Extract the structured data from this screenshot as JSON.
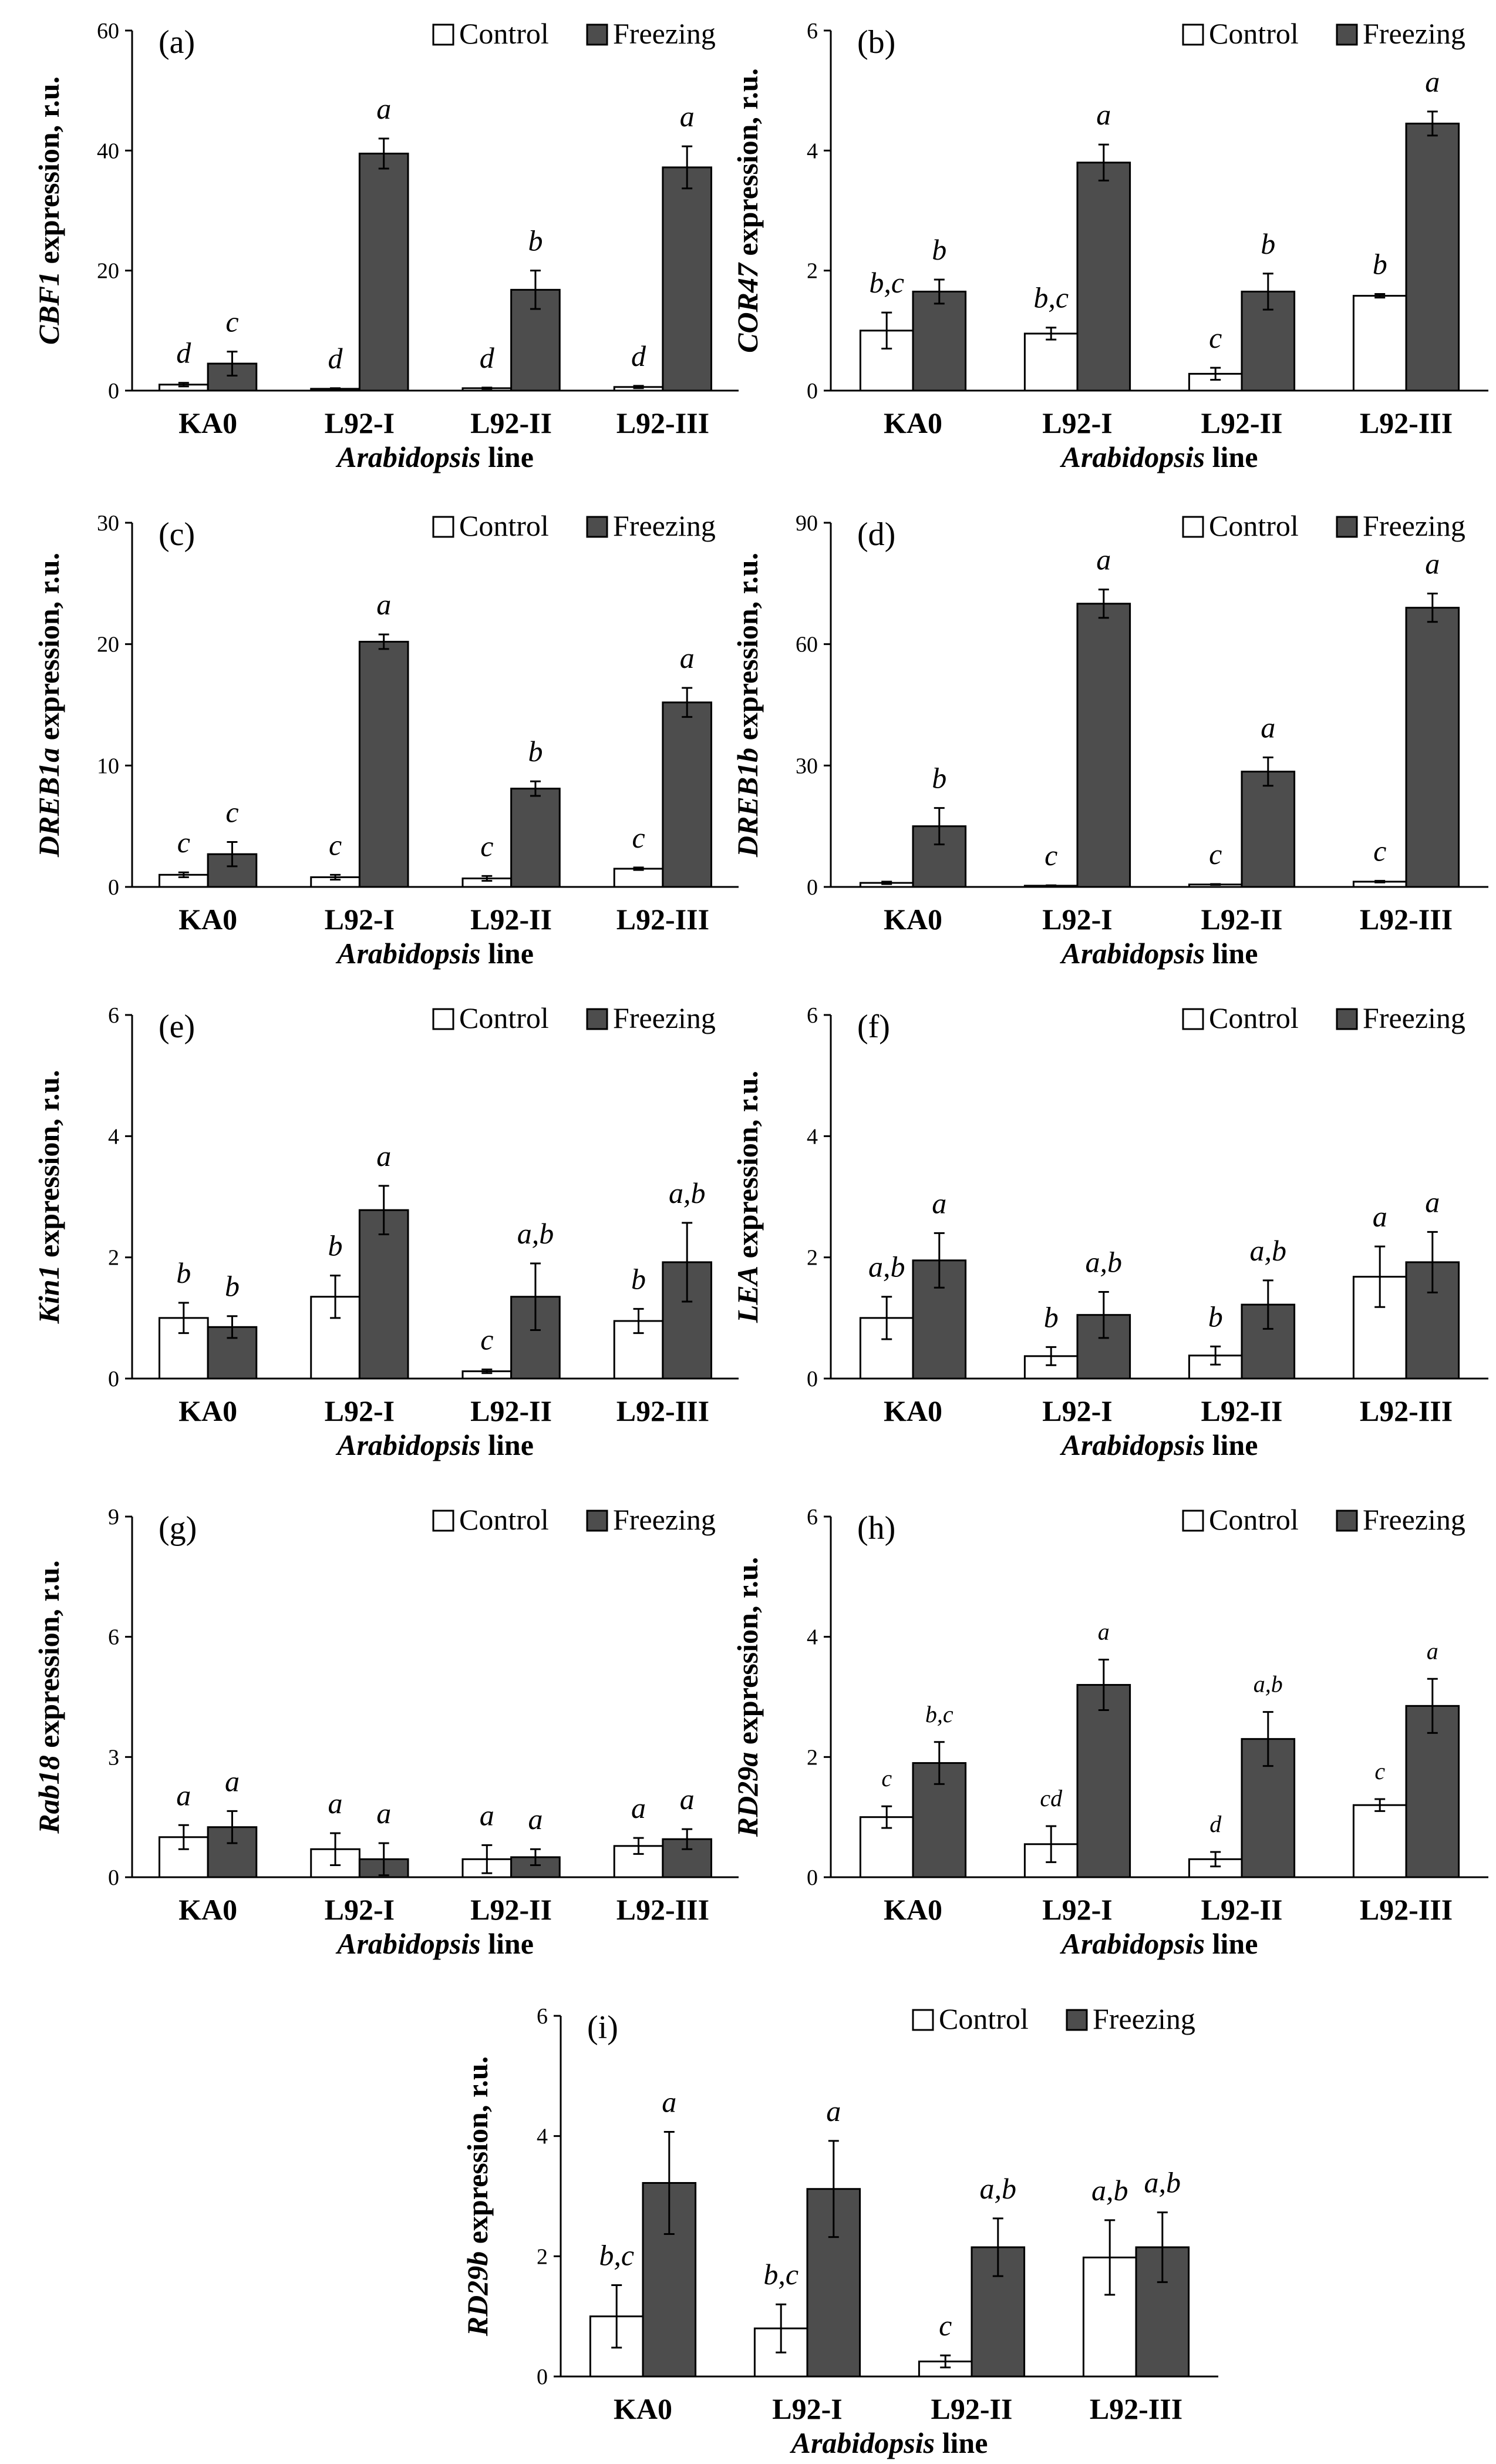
{
  "figure": {
    "legend": {
      "control": "Control",
      "freezing": "Freezing"
    },
    "colors": {
      "control_fill": "#ffffff",
      "freezing_fill": "#4d4d4d",
      "axis": "#000000"
    }
  },
  "chart_data": [
    {
      "type": "bar",
      "panel": "(a)",
      "ylabel_gene": "CBF1",
      "ylabel_suffix": " expression, r.u.",
      "xlabel_gene": "Arabidopsis",
      "xlabel_suffix": " line",
      "categories": [
        "KA0",
        "L92-I",
        "L92-II",
        "L92-III"
      ],
      "ylim": [
        0,
        60
      ],
      "yticks": [
        0,
        20,
        40,
        60
      ],
      "series": [
        {
          "name": "Control",
          "values": [
            1.0,
            0.3,
            0.4,
            0.6
          ],
          "errors": [
            0.3,
            0.1,
            0.1,
            0.2
          ],
          "labels": [
            "d",
            "d",
            "d",
            "d"
          ]
        },
        {
          "name": "Freezing",
          "values": [
            4.5,
            39.5,
            16.8,
            37.2
          ],
          "errors": [
            2.0,
            2.5,
            3.2,
            3.5
          ],
          "labels": [
            "c",
            "a",
            "b",
            "a"
          ]
        }
      ]
    },
    {
      "type": "bar",
      "panel": "(b)",
      "ylabel_gene": "COR47",
      "ylabel_suffix": " expression, r.u.",
      "xlabel_gene": "Arabidopsis",
      "xlabel_suffix": " line",
      "categories": [
        "KA0",
        "L92-I",
        "L92-II",
        "L92-III"
      ],
      "ylim": [
        0,
        6
      ],
      "yticks": [
        0,
        2,
        4,
        6
      ],
      "series": [
        {
          "name": "Control",
          "values": [
            1.0,
            0.95,
            0.28,
            1.58
          ],
          "errors": [
            0.3,
            0.1,
            0.1,
            0.03
          ],
          "labels": [
            "b,c",
            "b,c",
            "c",
            "b"
          ]
        },
        {
          "name": "Freezing",
          "values": [
            1.65,
            3.8,
            1.65,
            4.45
          ],
          "errors": [
            0.2,
            0.3,
            0.3,
            0.2
          ],
          "labels": [
            "b",
            "a",
            "b",
            "a"
          ]
        }
      ]
    },
    {
      "type": "bar",
      "panel": "(c)",
      "ylabel_gene": "DREB1a",
      "ylabel_suffix": " expression, r.u.",
      "xlabel_gene": "Arabidopsis",
      "xlabel_suffix": " line",
      "categories": [
        "KA0",
        "L92-I",
        "L92-II",
        "L92-III"
      ],
      "ylim": [
        0,
        30
      ],
      "yticks": [
        0,
        10,
        20,
        30
      ],
      "series": [
        {
          "name": "Control",
          "values": [
            1.0,
            0.8,
            0.7,
            1.5
          ],
          "errors": [
            0.2,
            0.2,
            0.2,
            0.1
          ],
          "labels": [
            "c",
            "c",
            "c",
            "c"
          ]
        },
        {
          "name": "Freezing",
          "values": [
            2.7,
            20.2,
            8.1,
            15.2
          ],
          "errors": [
            1.0,
            0.6,
            0.6,
            1.2
          ],
          "labels": [
            "c",
            "a",
            "b",
            "a"
          ]
        }
      ]
    },
    {
      "type": "bar",
      "panel": "(d)",
      "ylabel_gene": "DREB1b",
      "ylabel_suffix": " expression, r.u.",
      "xlabel_gene": "Arabidopsis",
      "xlabel_suffix": " line",
      "categories": [
        "KA0",
        "L92-I",
        "L92-II",
        "L92-III"
      ],
      "ylim": [
        0,
        90
      ],
      "yticks": [
        0,
        30,
        60,
        90
      ],
      "series": [
        {
          "name": "Control",
          "values": [
            1.0,
            0.3,
            0.6,
            1.3
          ],
          "errors": [
            0.3,
            0.1,
            0.1,
            0.2
          ],
          "labels": [
            "",
            "c",
            "c",
            "c"
          ]
        },
        {
          "name": "Freezing",
          "values": [
            15.0,
            70.0,
            28.5,
            69.0
          ],
          "errors": [
            4.5,
            3.5,
            3.5,
            3.5
          ],
          "labels": [
            "b",
            "a",
            "a",
            "a"
          ]
        }
      ]
    },
    {
      "type": "bar",
      "panel": "(e)",
      "ylabel_gene": "Kin1",
      "ylabel_suffix": " expression, r.u.",
      "xlabel_gene": "Arabidopsis",
      "xlabel_suffix": " line",
      "categories": [
        "KA0",
        "L92-I",
        "L92-II",
        "L92-III"
      ],
      "ylim": [
        0,
        6
      ],
      "yticks": [
        0,
        2,
        4,
        6
      ],
      "series": [
        {
          "name": "Control",
          "values": [
            1.0,
            1.35,
            0.12,
            0.95
          ],
          "errors": [
            0.25,
            0.35,
            0.03,
            0.2
          ],
          "labels": [
            "b",
            "b",
            "c",
            "b"
          ]
        },
        {
          "name": "Freezing",
          "values": [
            0.85,
            2.78,
            1.35,
            1.92
          ],
          "errors": [
            0.18,
            0.4,
            0.55,
            0.65
          ],
          "labels": [
            "b",
            "a",
            "a,b",
            "a,b"
          ]
        }
      ]
    },
    {
      "type": "bar",
      "panel": "(f)",
      "ylabel_gene": "LEA",
      "ylabel_suffix": " expression, r.u.",
      "xlabel_gene": "Arabidopsis",
      "xlabel_suffix": " line",
      "categories": [
        "KA0",
        "L92-I",
        "L92-II",
        "L92-III"
      ],
      "ylim": [
        0,
        6
      ],
      "yticks": [
        0,
        2,
        4,
        6
      ],
      "series": [
        {
          "name": "Control",
          "values": [
            1.0,
            0.37,
            0.38,
            1.68
          ],
          "errors": [
            0.35,
            0.15,
            0.15,
            0.5
          ],
          "labels": [
            "a,b",
            "b",
            "b",
            "a"
          ]
        },
        {
          "name": "Freezing",
          "values": [
            1.95,
            1.05,
            1.22,
            1.92
          ],
          "errors": [
            0.45,
            0.38,
            0.4,
            0.5
          ],
          "labels": [
            "a",
            "a,b",
            "a,b",
            "a"
          ]
        }
      ]
    },
    {
      "type": "bar",
      "panel": "(g)",
      "ylabel_gene": "Rab18",
      "ylabel_suffix": " expression, r.u.",
      "xlabel_gene": "Arabidopsis",
      "xlabel_suffix": " line",
      "categories": [
        "KA0",
        "L92-I",
        "L92-II",
        "L92-III"
      ],
      "ylim": [
        0,
        9
      ],
      "yticks": [
        0,
        3,
        6,
        9
      ],
      "series": [
        {
          "name": "Control",
          "values": [
            1.0,
            0.7,
            0.45,
            0.78
          ],
          "errors": [
            0.3,
            0.4,
            0.35,
            0.2
          ],
          "labels": [
            "a",
            "a",
            "a",
            "a"
          ]
        },
        {
          "name": "Freezing",
          "values": [
            1.25,
            0.45,
            0.5,
            0.95
          ],
          "errors": [
            0.4,
            0.4,
            0.2,
            0.25
          ],
          "labels": [
            "a",
            "a",
            "a",
            "a"
          ]
        }
      ]
    },
    {
      "type": "bar",
      "panel": "(h)",
      "ylabel_gene": "RD29a",
      "ylabel_suffix": " expression, r.u.",
      "xlabel_gene": "Arabidopsis",
      "xlabel_suffix": " line",
      "categories": [
        "KA0",
        "L92-I",
        "L92-II",
        "L92-III"
      ],
      "ylim": [
        0,
        6
      ],
      "yticks": [
        0,
        2,
        4,
        6
      ],
      "series": [
        {
          "name": "Control",
          "values": [
            1.0,
            0.55,
            0.3,
            1.2
          ],
          "errors": [
            0.18,
            0.3,
            0.12,
            0.1
          ],
          "labels": [
            "c",
            "cd",
            "d",
            "c"
          ]
        },
        {
          "name": "Freezing",
          "values": [
            1.9,
            3.2,
            2.3,
            2.85
          ],
          "errors": [
            0.35,
            0.42,
            0.45,
            0.45
          ],
          "labels": [
            "b,c",
            "a",
            "a,b",
            "a"
          ]
        }
      ]
    },
    {
      "type": "bar",
      "panel": "(i)",
      "ylabel_gene": "RD29b",
      "ylabel_suffix": " expression, r.u.",
      "xlabel_gene": "Arabidopsis",
      "xlabel_suffix": " line",
      "categories": [
        "KA0",
        "L92-I",
        "L92-II",
        "L92-III"
      ],
      "ylim": [
        0,
        6
      ],
      "yticks": [
        0,
        2,
        4,
        6
      ],
      "series": [
        {
          "name": "Control",
          "values": [
            1.0,
            0.8,
            0.25,
            1.98
          ],
          "errors": [
            0.52,
            0.4,
            0.1,
            0.62
          ],
          "labels": [
            "b,c",
            "b,c",
            "c",
            "a,b"
          ]
        },
        {
          "name": "Freezing",
          "values": [
            3.22,
            3.12,
            2.15,
            2.15
          ],
          "errors": [
            0.85,
            0.8,
            0.48,
            0.58
          ],
          "labels": [
            "a",
            "a",
            "a,b",
            "a,b"
          ]
        }
      ]
    }
  ]
}
